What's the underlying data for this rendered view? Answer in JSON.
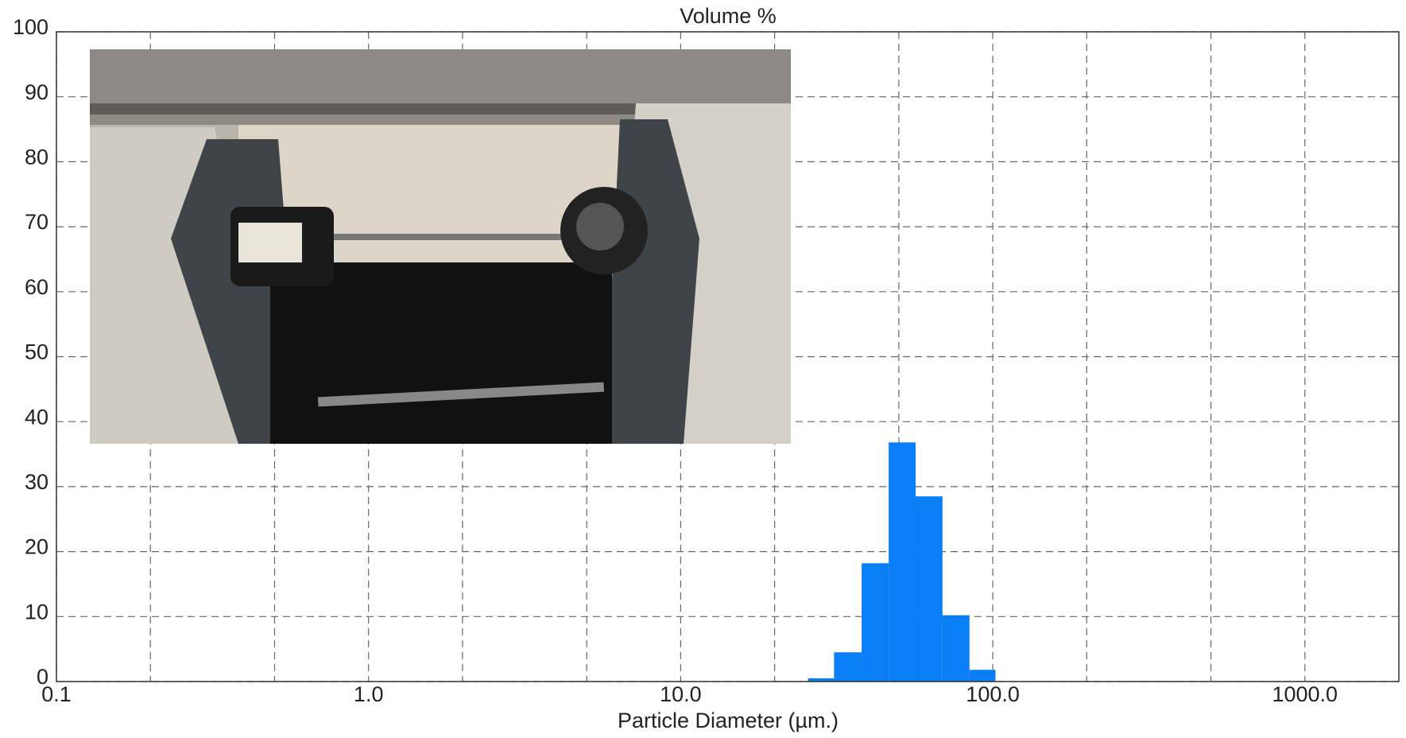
{
  "chart_data": {
    "type": "histogram",
    "title": "Volume %",
    "x_label": "Particle Diameter (µm.)",
    "bins": [
      25.6,
      31,
      38,
      46.4,
      56.6,
      69,
      84.2,
      102
    ],
    "counts": [
      0.5,
      4.5,
      18.2,
      36.8,
      28.5,
      10.2,
      1.8
    ],
    "color": "#0a7ff5",
    "xscale": "log",
    "xlim": [
      0.1,
      2000
    ],
    "xticks": [
      0.1,
      {
        "value": 1,
        "label": "1.0"
      },
      {
        "value": 10,
        "label": "10.0"
      },
      {
        "value": 100,
        "label": "100.0"
      },
      {
        "value": 1000,
        "label": "1000.0"
      }
    ],
    "xgrid": [
      0.2,
      0.5,
      2,
      5,
      20,
      50,
      200,
      500
    ],
    "ylim": [
      0,
      100
    ],
    "yticks": [
      0,
      10,
      20,
      30,
      40,
      50,
      60,
      70,
      80,
      90,
      100
    ],
    "grid": true
  }
}
